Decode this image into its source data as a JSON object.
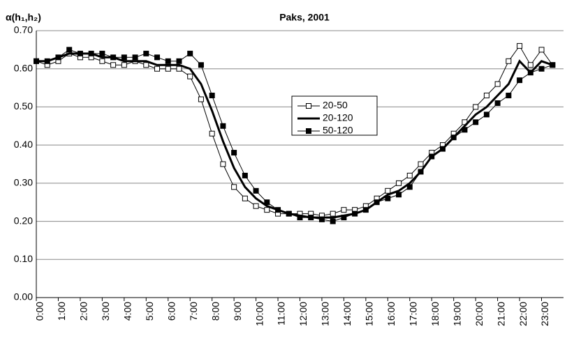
{
  "chart_data": {
    "type": "line",
    "title": "Paks, 2001",
    "y_label": "α(h₁,h₂)",
    "x": [
      0,
      0.5,
      1,
      1.5,
      2,
      2.5,
      3,
      3.5,
      4,
      4.5,
      5,
      5.5,
      6,
      6.5,
      7,
      7.5,
      8,
      8.5,
      9,
      9.5,
      10,
      10.5,
      11,
      11.5,
      12,
      12.5,
      13,
      13.5,
      14,
      14.5,
      15,
      15.5,
      16,
      16.5,
      17,
      17.5,
      18,
      18.5,
      19,
      19.5,
      20,
      20.5,
      21,
      21.5,
      22,
      22.5,
      23,
      23.5
    ],
    "series": [
      {
        "name": "20-50",
        "color": "#000000",
        "marker": "square-open",
        "line_width": 1,
        "values": [
          0.62,
          0.61,
          0.62,
          0.64,
          0.63,
          0.63,
          0.62,
          0.61,
          0.61,
          0.62,
          0.61,
          0.6,
          0.6,
          0.6,
          0.58,
          0.52,
          0.43,
          0.35,
          0.29,
          0.26,
          0.24,
          0.23,
          0.22,
          0.22,
          0.22,
          0.22,
          0.215,
          0.22,
          0.23,
          0.23,
          0.24,
          0.26,
          0.28,
          0.3,
          0.32,
          0.35,
          0.38,
          0.4,
          0.43,
          0.46,
          0.5,
          0.53,
          0.56,
          0.62,
          0.66,
          0.61,
          0.65,
          0.61
        ]
      },
      {
        "name": "20-120",
        "color": "#000000",
        "marker": "none",
        "line_width": 3,
        "values": [
          0.62,
          0.62,
          0.63,
          0.64,
          0.64,
          0.64,
          0.63,
          0.63,
          0.62,
          0.62,
          0.62,
          0.61,
          0.61,
          0.61,
          0.6,
          0.56,
          0.49,
          0.41,
          0.34,
          0.29,
          0.26,
          0.24,
          0.23,
          0.22,
          0.215,
          0.21,
          0.21,
          0.21,
          0.215,
          0.22,
          0.23,
          0.25,
          0.27,
          0.28,
          0.3,
          0.33,
          0.37,
          0.39,
          0.42,
          0.45,
          0.48,
          0.5,
          0.53,
          0.56,
          0.62,
          0.59,
          0.62,
          0.61
        ]
      },
      {
        "name": "50-120",
        "color": "#000000",
        "marker": "square",
        "line_width": 1,
        "values": [
          0.62,
          0.62,
          0.63,
          0.65,
          0.64,
          0.64,
          0.64,
          0.63,
          0.63,
          0.63,
          0.64,
          0.63,
          0.62,
          0.62,
          0.64,
          0.61,
          0.53,
          0.45,
          0.38,
          0.32,
          0.28,
          0.25,
          0.23,
          0.22,
          0.21,
          0.21,
          0.205,
          0.2,
          0.21,
          0.22,
          0.23,
          0.25,
          0.26,
          0.27,
          0.29,
          0.33,
          0.37,
          0.39,
          0.42,
          0.44,
          0.46,
          0.48,
          0.51,
          0.53,
          0.57,
          0.59,
          0.6,
          0.61
        ]
      }
    ],
    "xlim": [
      0,
      24
    ],
    "xticks": [
      {
        "value": 0,
        "label": "0:00"
      },
      {
        "value": 1,
        "label": "1:00"
      },
      {
        "value": 2,
        "label": "2:00"
      },
      {
        "value": 3,
        "label": "3:00"
      },
      {
        "value": 4,
        "label": "4:00"
      },
      {
        "value": 5,
        "label": "5:00"
      },
      {
        "value": 6,
        "label": "6:00"
      },
      {
        "value": 7,
        "label": "7:00"
      },
      {
        "value": 8,
        "label": "8:00"
      },
      {
        "value": 9,
        "label": "9:00"
      },
      {
        "value": 10,
        "label": "10:00"
      },
      {
        "value": 11,
        "label": "11:00"
      },
      {
        "value": 12,
        "label": "12:00"
      },
      {
        "value": 13,
        "label": "13:00"
      },
      {
        "value": 14,
        "label": "14:00"
      },
      {
        "value": 15,
        "label": "15:00"
      },
      {
        "value": 16,
        "label": "16:00"
      },
      {
        "value": 17,
        "label": "17:00"
      },
      {
        "value": 18,
        "label": "18:00"
      },
      {
        "value": 19,
        "label": "19:00"
      },
      {
        "value": 20,
        "label": "20:00"
      },
      {
        "value": 21,
        "label": "21:00"
      },
      {
        "value": 22,
        "label": "22:00"
      },
      {
        "value": 23,
        "label": "23:00"
      }
    ],
    "ylim": [
      0,
      0.7
    ],
    "yticks": [
      {
        "value": 0,
        "label": "0.00"
      },
      {
        "value": 0.1,
        "label": "0.10"
      },
      {
        "value": 0.2,
        "label": "0.20"
      },
      {
        "value": 0.3,
        "label": "0.30"
      },
      {
        "value": 0.4,
        "label": "0.40"
      },
      {
        "value": 0.5,
        "label": "0.50"
      },
      {
        "value": 0.6,
        "label": "0.60"
      },
      {
        "value": 0.7,
        "label": "0.70"
      }
    ],
    "grid": true,
    "legend": "upper-center"
  }
}
